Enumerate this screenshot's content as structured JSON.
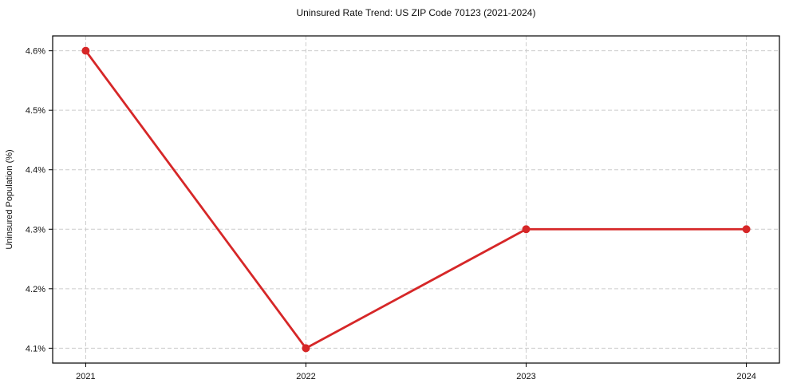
{
  "chart": {
    "title": "Uninsured Rate Trend: US ZIP Code 70123 (2021-2024)",
    "ylabel": "Uninsured Population (%)"
  },
  "chart_data": {
    "type": "line",
    "title": "Uninsured Rate Trend: US ZIP Code 70123 (2021-2024)",
    "xlabel": "",
    "ylabel": "Uninsured Population (%)",
    "x": [
      2021,
      2022,
      2023,
      2024
    ],
    "values": [
      4.6,
      4.1,
      4.3,
      4.3
    ],
    "xticks": [
      2021,
      2022,
      2023,
      2024
    ],
    "yticks": [
      4.1,
      4.2,
      4.3,
      4.4,
      4.5,
      4.6
    ],
    "ytick_decimals": 1,
    "ytick_suffix": "%",
    "xlim": [
      2020.85,
      2024.15
    ],
    "ylim": [
      4.075,
      4.625
    ],
    "grid": true,
    "legend": "none",
    "line_color": "#d62728",
    "marker": "o",
    "marker_radius": 5,
    "grid_color": "#cccccc",
    "frame_color": "#000000",
    "background_color": "#ffffff"
  }
}
